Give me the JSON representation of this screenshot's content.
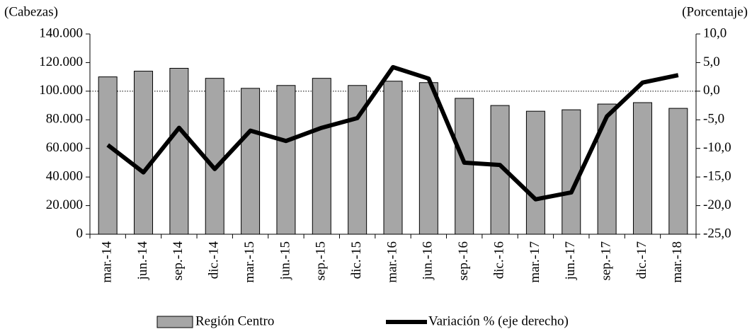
{
  "chart_data": {
    "type": "bar-line",
    "y_label": "(Cabezas)",
    "y2_label": "(Porcentaje)",
    "categories": [
      "mar.-14",
      "jun.-14",
      "sep.-14",
      "dic.-14",
      "mar.-15",
      "jun.-15",
      "sep.-15",
      "dic.-15",
      "mar.-16",
      "jun.-16",
      "sep.-16",
      "dic.-16",
      "mar.-17",
      "jun.-17",
      "sep.-17",
      "dic.-17",
      "mar.-18"
    ],
    "series": [
      {
        "name": "Región Centro",
        "type": "bar",
        "color": "#a6a6a6",
        "values": [
          110000,
          114000,
          116000,
          109000,
          102000,
          104000,
          109000,
          104000,
          107000,
          106000,
          95000,
          90000,
          86000,
          87000,
          91000,
          92000,
          88000
        ]
      },
      {
        "name": "Variación % (eje derecho)",
        "type": "line",
        "axis": "y2",
        "color": "#000000",
        "values": [
          -9.4,
          -14.2,
          -6.4,
          -13.6,
          -6.9,
          -8.7,
          -6.4,
          -4.7,
          4.2,
          2.2,
          -12.5,
          -12.9,
          -18.9,
          -17.7,
          -4.4,
          1.5,
          2.8
        ]
      }
    ],
    "ylim": [
      0,
      140000
    ],
    "yticks": [
      0,
      {
        "value": 20000,
        "label": "20.000"
      },
      {
        "value": 40000,
        "label": "40.000"
      },
      {
        "value": 60000,
        "label": "60.000"
      },
      {
        "value": 80000,
        "label": "80.000"
      },
      {
        "value": 100000,
        "label": "100.000"
      },
      {
        "value": 120000,
        "label": "120.000"
      },
      {
        "value": 140000,
        "label": "140.000"
      }
    ],
    "y2lim": [
      -25,
      10
    ],
    "y2ticks": [
      {
        "value": -25,
        "label": "-25,0"
      },
      {
        "value": -20,
        "label": "-20,0"
      },
      {
        "value": -15,
        "label": "-15,0"
      },
      {
        "value": -10,
        "label": "-10,0"
      },
      {
        "value": -5,
        "label": "-5,0"
      },
      {
        "value": 0,
        "label": "0,0"
      },
      {
        "value": 5,
        "label": "5,0"
      },
      {
        "value": 10,
        "label": "10,0"
      }
    ],
    "y2_zero_line": true,
    "legend": "bottom"
  }
}
